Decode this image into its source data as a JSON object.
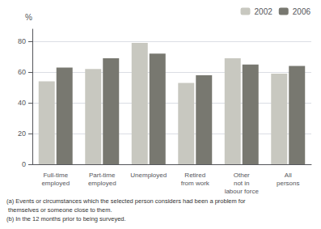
{
  "chart_data": {
    "type": "bar",
    "categories": [
      "Full-time\nemployed",
      "Part-time\nemployed",
      "Unemployed",
      "Retired\nfrom work",
      "Other\nnot in\nlabour force",
      "All\npersons"
    ],
    "series": [
      {
        "name": "2002",
        "color": "#c8c8c0",
        "values": [
          54,
          62,
          79,
          53,
          69,
          59
        ]
      },
      {
        "name": "2006",
        "color": "#787870",
        "values": [
          63,
          69,
          72,
          58,
          65,
          64
        ]
      }
    ],
    "ylabel": "%",
    "ylim": [
      0,
      88
    ],
    "yticks": [
      0,
      20,
      40,
      60,
      80
    ],
    "grid": true,
    "legend": "upper right",
    "annotations": [
      "(a) Events or circumstances which the selected person considers had been a problem for",
      " themselves or someone close to them.",
      "(b) In the 12 months prior to being surveyed."
    ]
  }
}
